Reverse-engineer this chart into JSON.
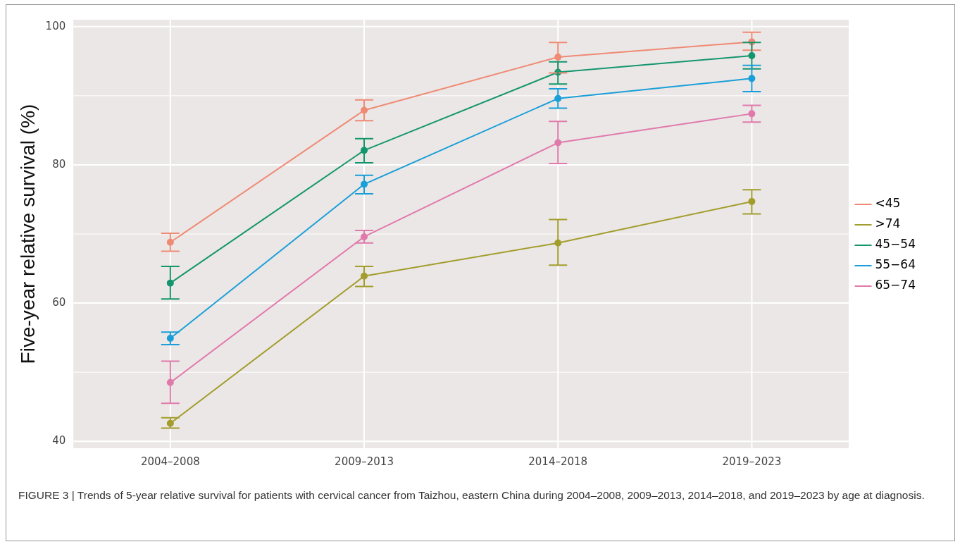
{
  "chart_data": {
    "type": "line",
    "ylabel": "Five-year relative survival (%)",
    "categories": [
      "2004–2008",
      "2009–2013",
      "2014–2018",
      "2019–2023"
    ],
    "ylim": [
      39,
      101
    ],
    "yticks": [
      40,
      {
        "value": 50,
        "label": null
      },
      60,
      {
        "value": 70,
        "label": null
      },
      80,
      {
        "value": 90,
        "label": null
      },
      100
    ],
    "grid": true,
    "legend": "right",
    "marker": "circle",
    "line_style": "solid",
    "series": [
      {
        "name": "<45",
        "color": "#ef8a74",
        "values": [
          68.8,
          87.9,
          95.6,
          97.8
        ],
        "errors": [
          [
            67.5,
            70.1
          ],
          [
            86.4,
            89.4
          ],
          [
            93.3,
            97.7
          ],
          [
            96.6,
            99.2
          ]
        ]
      },
      {
        "name": ">74",
        "color": "#a39d2c",
        "values": [
          42.6,
          63.9,
          68.7,
          74.7
        ],
        "errors": [
          [
            41.9,
            43.4
          ],
          [
            62.4,
            65.3
          ],
          [
            65.5,
            72.1
          ],
          [
            72.9,
            76.4
          ]
        ]
      },
      {
        "name": "45−54",
        "color": "#14966e",
        "values": [
          62.9,
          82.1,
          93.4,
          95.8
        ],
        "errors": [
          [
            60.6,
            65.3
          ],
          [
            80.3,
            83.8
          ],
          [
            91.7,
            94.9
          ],
          [
            93.9,
            97.7
          ]
        ]
      },
      {
        "name": "55−64",
        "color": "#1a9fd8",
        "values": [
          54.9,
          77.2,
          89.6,
          92.5
        ],
        "errors": [
          [
            54.0,
            55.8
          ],
          [
            75.8,
            78.5
          ],
          [
            88.2,
            91.0
          ],
          [
            90.6,
            94.4
          ]
        ]
      },
      {
        "name": "65−74",
        "color": "#e07aab",
        "values": [
          48.5,
          69.6,
          83.2,
          87.4
        ],
        "errors": [
          [
            45.5,
            51.6
          ],
          [
            68.7,
            70.5
          ],
          [
            80.2,
            86.3
          ],
          [
            86.2,
            88.6
          ]
        ]
      }
    ],
    "annotations": [
      "FIGURE 3 | Trends of 5-year relative survival for patients with cervical cancer from Taizhou, eastern China during 2004–2008, 2009–2013, 2014–2018, and 2019–2023 by age at diagnosis."
    ]
  }
}
